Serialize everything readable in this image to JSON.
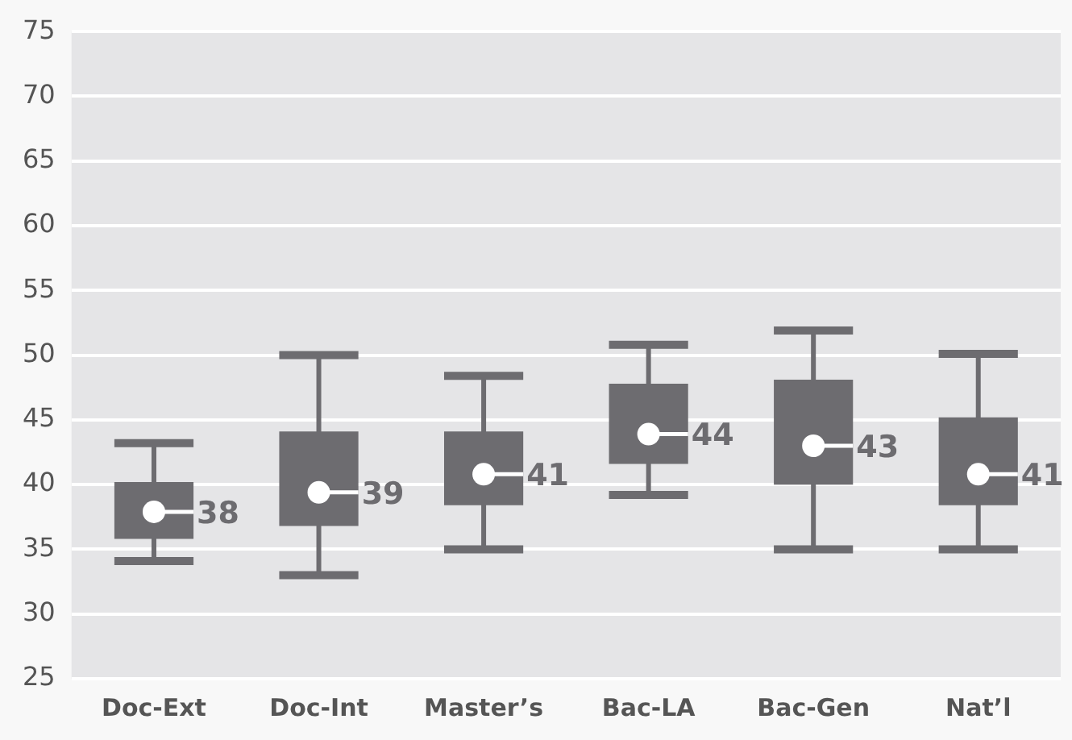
{
  "chart_data": {
    "type": "box",
    "categories": [
      "Doc-Ext",
      "Doc-Int",
      "Master’s",
      "Bac-LA",
      "Bac-Gen",
      "Nat’l"
    ],
    "color": "#6d6c70",
    "boxes": [
      {
        "low": 34.1,
        "q1": 35.8,
        "median": 37.9,
        "q3": 40.2,
        "high": 43.2
      },
      {
        "low": 33.0,
        "q1": 36.8,
        "median": 39.4,
        "q3": 44.1,
        "high": 50.0
      },
      {
        "low": 35.0,
        "q1": 38.4,
        "median": 40.8,
        "q3": 44.1,
        "high": 48.4
      },
      {
        "low": 39.2,
        "q1": 41.6,
        "median": 43.9,
        "q3": 47.8,
        "high": 50.8
      },
      {
        "low": 35.0,
        "q1": 40.0,
        "median": 43.0,
        "q3": 48.1,
        "high": 51.9
      },
      {
        "low": 35.0,
        "q1": 38.4,
        "median": 40.8,
        "q3": 45.2,
        "high": 50.1
      }
    ],
    "annotations": [
      {
        "text": "38",
        "x": "Doc-Ext",
        "y": 37.9
      },
      {
        "text": "39",
        "x": "Doc-Int",
        "y": 39.4
      },
      {
        "text": "41",
        "x": "Master’s",
        "y": 40.8
      },
      {
        "text": "44",
        "x": "Bac-LA",
        "y": 43.9
      },
      {
        "text": "43",
        "x": "Bac-Gen",
        "y": 43.0
      },
      {
        "text": "41",
        "x": "Nat’l",
        "y": 40.8
      }
    ],
    "ylim": [
      25,
      75
    ],
    "yticks": [
      25,
      30,
      35,
      40,
      45,
      50,
      55,
      60,
      65,
      70,
      75
    ],
    "grid": "y"
  }
}
